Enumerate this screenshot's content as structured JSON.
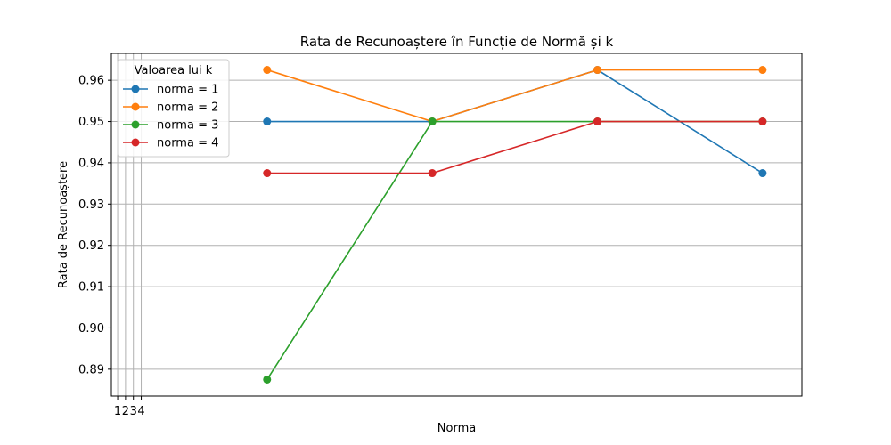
{
  "chart_data": {
    "type": "line",
    "title": "Rata de Recunoaștere în Funcție de Normă și k",
    "xlabel": "Norma",
    "ylabel": "Rata de Recunoaștere",
    "xlim": [
      0.2,
      88
    ],
    "ylim": [
      0.8835,
      0.9665
    ],
    "x_ticks": [
      1,
      2,
      3,
      4
    ],
    "y_ticks": [
      0.89,
      0.9,
      0.91,
      0.92,
      0.93,
      0.94,
      0.95,
      0.96
    ],
    "y_tick_labels": [
      "0.89",
      "0.90",
      "0.91",
      "0.92",
      "0.93",
      "0.94",
      "0.95",
      "0.96"
    ],
    "grid": true,
    "x": [
      20,
      41,
      62,
      83
    ],
    "series": [
      {
        "name": "norma = 1",
        "color": "#1f77b4",
        "values": [
          0.95,
          0.95,
          0.9625,
          0.9375
        ]
      },
      {
        "name": "norma = 2",
        "color": "#ff7f0e",
        "values": [
          0.9625,
          0.95,
          0.9625,
          0.9625
        ]
      },
      {
        "name": "norma = 3",
        "color": "#2ca02c",
        "values": [
          0.8875,
          0.95,
          0.95,
          0.95
        ]
      },
      {
        "name": "norma = 4",
        "color": "#d62728",
        "values": [
          0.9375,
          0.9375,
          0.95,
          0.95
        ]
      }
    ],
    "legend": {
      "title": "Valoarea lui k",
      "position": "top-left"
    }
  }
}
